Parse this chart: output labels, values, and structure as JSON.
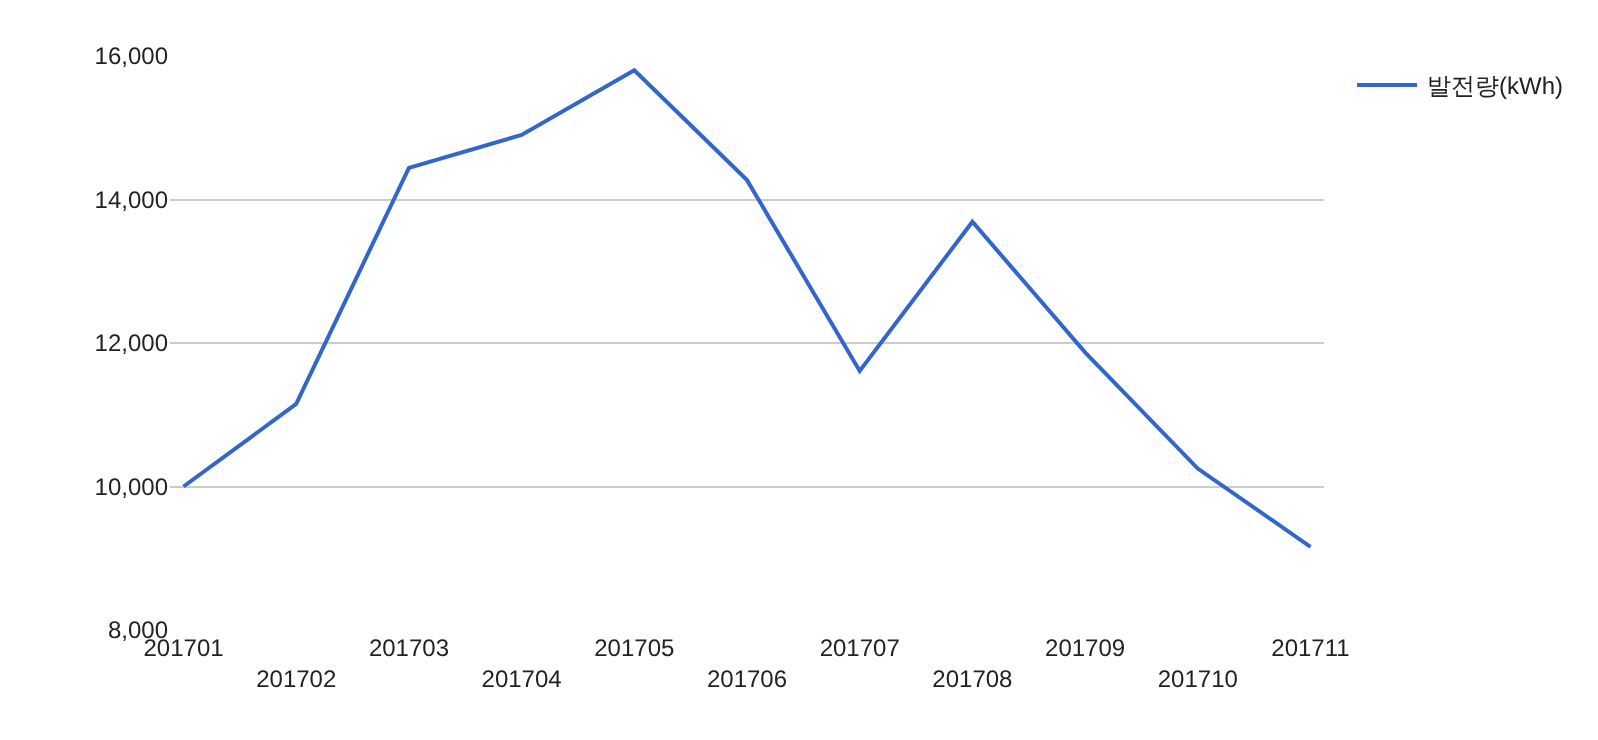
{
  "chart_data": {
    "type": "line",
    "categories": [
      "201701",
      "201702",
      "201703",
      "201704",
      "201705",
      "201706",
      "201707",
      "201708",
      "201709",
      "201710",
      "201711"
    ],
    "series": [
      {
        "name": "발전량(kWh)",
        "color": "#3366cc",
        "values": [
          10000,
          11150,
          14440,
          14900,
          15800,
          14270,
          11610,
          13690,
          11870,
          10250,
          9160
        ]
      }
    ],
    "ylim": [
      8000,
      16000
    ],
    "yticks": [
      {
        "value": 8000,
        "label": "8,000"
      },
      {
        "value": 10000,
        "label": "10,000"
      },
      {
        "value": 12000,
        "label": "12,000"
      },
      {
        "value": 14000,
        "label": "14,000"
      },
      {
        "value": 16000,
        "label": "16,000"
      }
    ],
    "grid": "y",
    "legend": "top right",
    "marker": "none",
    "line_style": "solid"
  }
}
